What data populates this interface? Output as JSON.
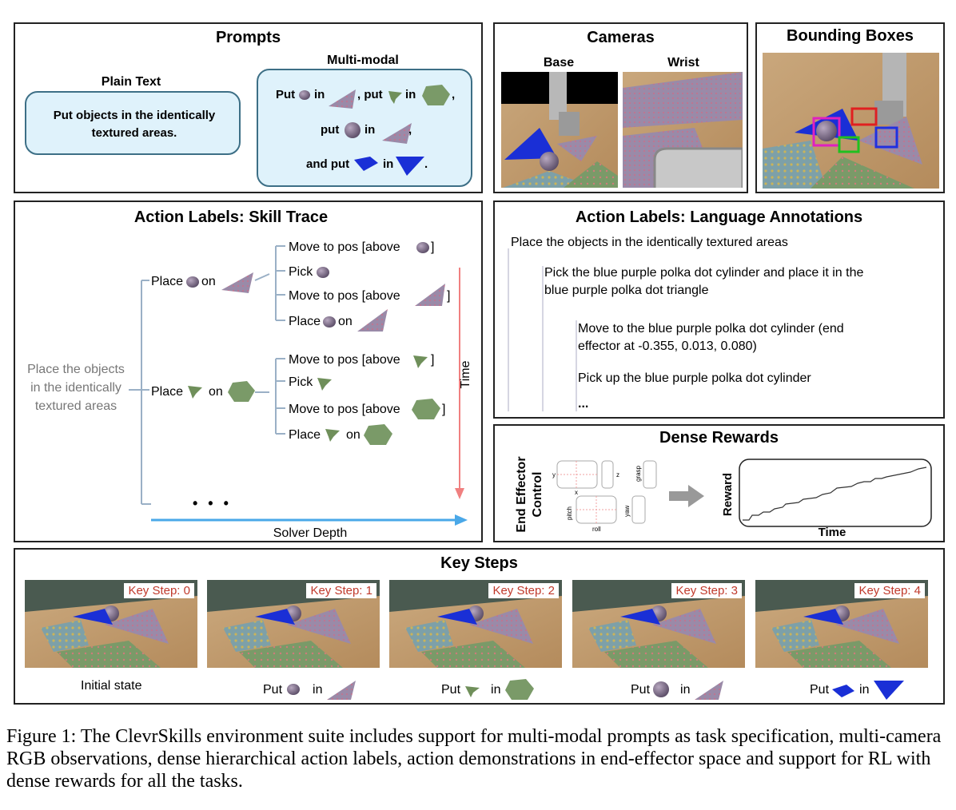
{
  "prompts": {
    "title": "Prompts",
    "plain_text_label": "Plain Text",
    "plain_text": "Put objects in the identically textured areas.",
    "multimodal_label": "Multi-modal",
    "mm_put": "Put",
    "mm_in": "in",
    "mm_put2": ", put",
    "mm_in2": "in",
    "mm_comma": ",",
    "mm_put3": "put",
    "mm_in3": "in",
    "mm_comma3": ",",
    "mm_and_put": "and put",
    "mm_in4": "in",
    "mm_period": "."
  },
  "cameras": {
    "title": "Cameras",
    "base_label": "Base",
    "wrist_label": "Wrist"
  },
  "bboxes": {
    "title": "Bounding Boxes"
  },
  "skill_trace": {
    "title": "Action Labels: Skill Trace",
    "root": "Place the objects in the identically textured areas",
    "root_lines": [
      "Place the objects",
      "in the identically",
      "textured areas"
    ],
    "place1_a": "Place",
    "place1_b": "on",
    "place2_a": "Place",
    "place2_b": "on",
    "items1": {
      "move1": "Move to pos [above",
      "move1_end": "]",
      "pick": "Pick",
      "move2": "Move to pos [above",
      "move2_end": "]",
      "place": "Place",
      "place_on": "on"
    },
    "items2": {
      "move1": "Move to pos [above",
      "move1_end": "]",
      "pick": "Pick",
      "move2": "Move to pos [above",
      "move2_end": "]",
      "place": "Place",
      "place_on": "on"
    },
    "ellipsis": "• • •",
    "time_label": "Time",
    "depth_label": "Solver Depth"
  },
  "language": {
    "title": "Action Labels: Language Annotations",
    "l1": "Place the objects in the identically textured areas",
    "l2a": "Pick the blue purple polka dot cylinder and place it in the",
    "l2b": "blue purple polka dot triangle",
    "l3a": "Move to the blue purple polka dot cylinder (end",
    "l3b": "effector at -0.355, 0.013, 0.080)",
    "l4": "Pick up the blue purple polka dot cylinder",
    "l5": "..."
  },
  "dense": {
    "title": "Dense Rewards",
    "ee_label_1": "End Effector",
    "ee_label_2": "Control",
    "y": "y",
    "x": "x",
    "z": "z",
    "grasp": "grasp",
    "pitch": "pitch",
    "roll": "roll",
    "yaw": "yaw",
    "reward_label": "Reward",
    "time_label": "Time"
  },
  "key_steps": {
    "title": "Key Steps",
    "steps": [
      "Key Step: 0",
      "Key Step: 1",
      "Key Step: 2",
      "Key Step: 3",
      "Key Step: 4"
    ],
    "cap0": "Initial state",
    "put": "Put",
    "in": "in"
  },
  "figure_caption": "Figure 1: The ClevrSkills environment suite includes support for multi-modal prompts as task specification, multi-camera RGB observations, dense hierarchical action labels, action demonstrations in end-effector space and support for RL with dense rewards for all the tasks.",
  "colors": {
    "box_border": "#3d6f86",
    "box_fill": "#dff2fb",
    "time_arrow": "#f08080",
    "depth_arrow": "#4aa8e8",
    "keystep_text": "#c0392b",
    "polka_purple": "#9a8aa8",
    "blue": "#1a2fd6",
    "green": "#7a9a68"
  }
}
